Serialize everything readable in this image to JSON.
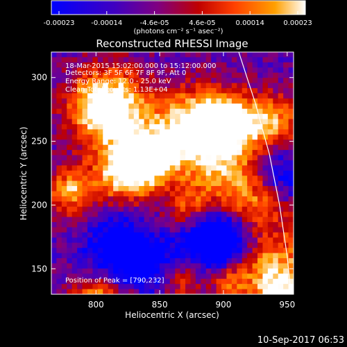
{
  "colorbar": {
    "tick_labels": [
      "-0.00023",
      "-0.00014",
      "-4.6e-05",
      "4.6e-05",
      "0.00014",
      "0.00023"
    ],
    "units": "(photons cm⁻² s⁻¹ asec⁻²)",
    "colors": [
      "#0000ff",
      "#4000c0",
      "#800080",
      "#c00000",
      "#ff4000",
      "#ffa000",
      "#ffffff"
    ]
  },
  "chart_data": {
    "type": "heatmap",
    "title": "Reconstructed RHESSI Image",
    "xlabel": "Heliocentric X (arcsec)",
    "ylabel": "Heliocentric Y (arcsec)",
    "xlim": [
      765,
      955
    ],
    "ylim": [
      130,
      320
    ],
    "xticks": [
      800,
      850,
      900,
      950
    ],
    "yticks": [
      150,
      200,
      250,
      300
    ],
    "limb_curve": [
      [
        912,
        320
      ],
      [
        925,
        280
      ],
      [
        936,
        240
      ],
      [
        944,
        200
      ],
      [
        950,
        160
      ],
      [
        953,
        130
      ]
    ],
    "annotations": [
      "18-Mar-2015 15:02:00.000 to 15:12:00.000",
      "Detectors: 3F 5F 6F 7F 8F 9F, Att 0",
      "Energy Range: 12.0 - 25.0 keV",
      "Clean    Total counts: 1.13E+04"
    ],
    "peak_text": "Position of Peak = [790,232]",
    "timestamp": "10-Sep-2017 06:53"
  }
}
